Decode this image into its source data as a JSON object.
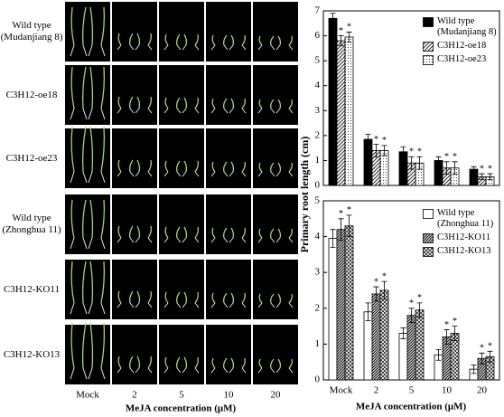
{
  "photo_panel": {
    "row_labels": [
      "Wild type (Mudanjiang 8)",
      "C3H12-oe18",
      "C3H12-oe23",
      "Wild type (Zhonghua 11)",
      "C3H12-KO11",
      "C3H12-KO13"
    ],
    "column_labels": [
      "Mock",
      "2",
      "5",
      "10",
      "20"
    ],
    "x_label": "MeJA concentration (μM)"
  },
  "chart_data": [
    {
      "type": "bar",
      "y_label": "Primary root length (cm)",
      "categories": [
        null,
        null,
        null,
        null,
        null
      ],
      "ylim": [
        0,
        7
      ],
      "yticks": [
        0,
        1,
        2,
        3,
        4,
        5,
        6,
        7
      ],
      "series": [
        {
          "name": "Wild type (Mudanjiang 8)",
          "color": "#000000",
          "hatch": "solid",
          "values": [
            6.7,
            1.85,
            1.35,
            1.0,
            0.65
          ],
          "errors": [
            0.2,
            0.2,
            0.2,
            0.15,
            0.1
          ]
        },
        {
          "name": "C3H12-oe18",
          "color": "#000000",
          "hatch": "diagonal",
          "values": [
            5.8,
            1.4,
            0.9,
            0.7,
            0.35
          ],
          "errors": [
            0.2,
            0.25,
            0.25,
            0.25,
            0.12
          ],
          "significance": "*"
        },
        {
          "name": "C3H12-oe23",
          "color": "#000000",
          "hatch": "dotted",
          "values": [
            5.95,
            1.4,
            0.9,
            0.7,
            0.35
          ],
          "errors": [
            0.2,
            0.2,
            0.25,
            0.25,
            0.12
          ],
          "significance": "*"
        }
      ]
    },
    {
      "type": "bar",
      "x_label": "MeJA concentration (μM)",
      "categories": [
        "Mock",
        "2",
        "5",
        "10",
        "20"
      ],
      "ylim": [
        0,
        5
      ],
      "yticks": [
        0,
        1,
        2,
        3,
        4,
        5
      ],
      "series": [
        {
          "name": "Wild type (Zhonghua 11)",
          "color": "#000000",
          "hatch": "none",
          "values": [
            3.95,
            1.9,
            1.3,
            0.7,
            0.3
          ],
          "errors": [
            0.25,
            0.25,
            0.15,
            0.15,
            0.12
          ]
        },
        {
          "name": "C3H12-KO11",
          "color": "#000000",
          "hatch": "dense-diagonal",
          "values": [
            4.2,
            2.4,
            1.8,
            1.2,
            0.6
          ],
          "errors": [
            0.3,
            0.2,
            0.2,
            0.2,
            0.15
          ],
          "significance": "*"
        },
        {
          "name": "C3H12-KO13",
          "color": "#000000",
          "hatch": "crosshatch",
          "values": [
            4.3,
            2.5,
            1.95,
            1.3,
            0.65
          ],
          "errors": [
            0.3,
            0.25,
            0.2,
            0.2,
            0.15
          ],
          "significance": "*"
        }
      ]
    }
  ]
}
